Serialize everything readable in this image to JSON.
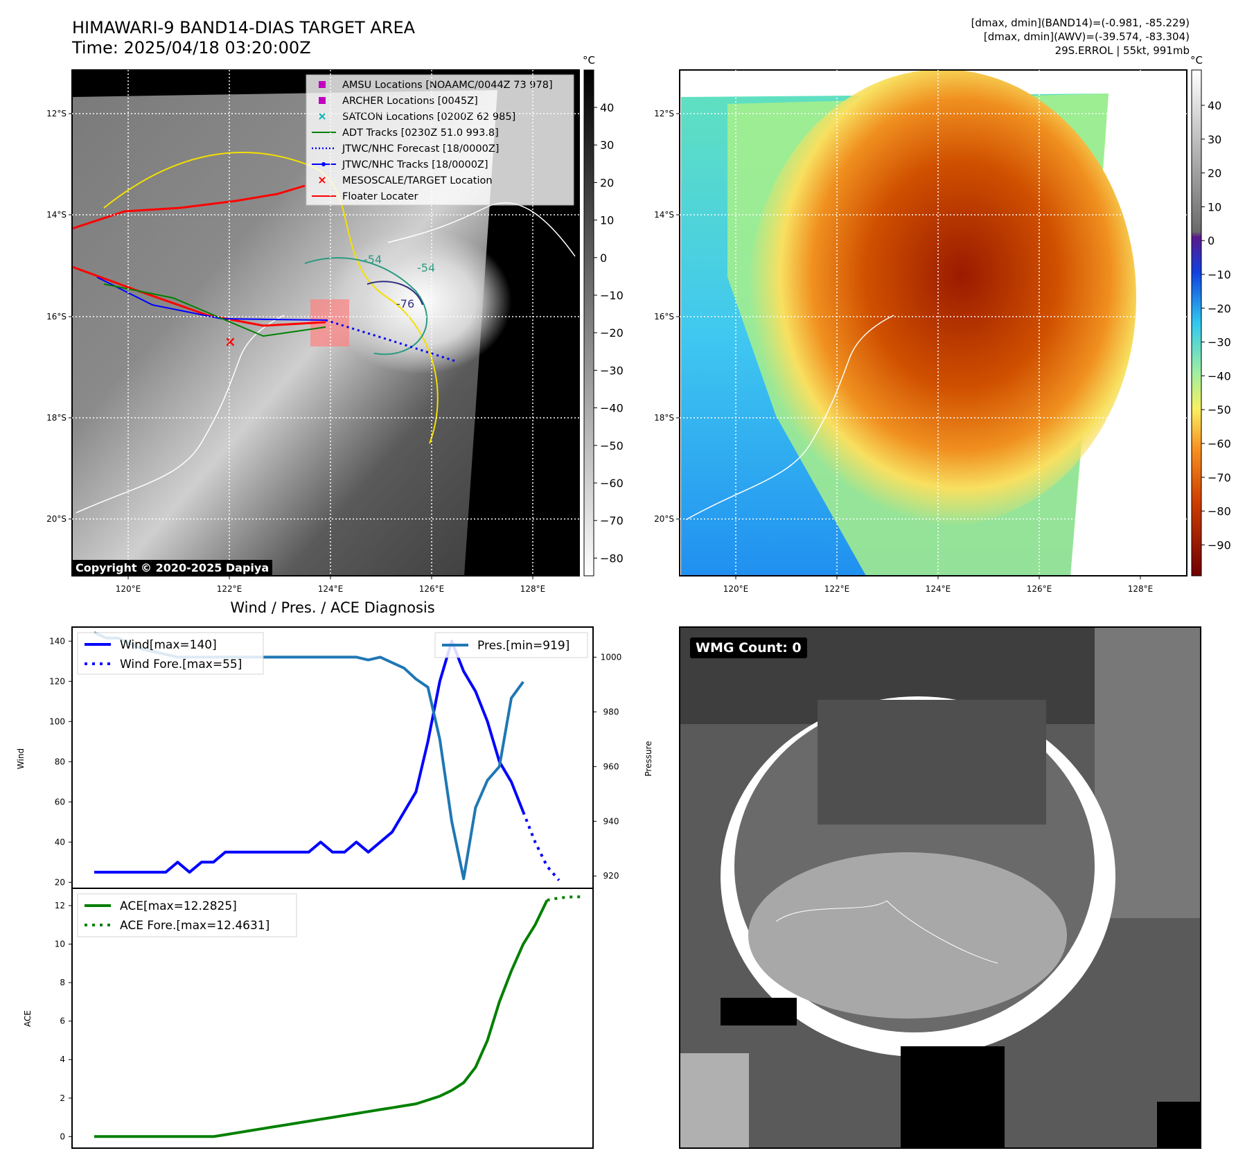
{
  "header": {
    "title_line1": "HIMAWARI-9 BAND14-DIAS TARGET AREA",
    "title_line2": "Time: 2025/04/18 03:20:00Z",
    "info_line1": "[dmax, dmin](BAND14)=(-0.981, -85.229)",
    "info_line2": "[dmax, dmin](AWV)=(-39.574, -83.304)",
    "info_line3": "29S.ERROL | 55kt, 991mb"
  },
  "map": {
    "lat_labels": [
      "12°S",
      "14°S",
      "16°S",
      "18°S",
      "20°S"
    ],
    "lon_labels": [
      "120°E",
      "122°E",
      "124°E",
      "126°E",
      "128°E"
    ],
    "contour_labels": [
      "-76",
      "-54",
      "-54"
    ],
    "copyright": "Copyright © 2020-2025 Dapiya",
    "legend": [
      {
        "label": "AMSU Locations [NOAAMC/0044Z 73 978]",
        "color": "#c000c0",
        "marker": "square"
      },
      {
        "label": "ARCHER Locations [0045Z]",
        "color": "#c000c0",
        "marker": "square"
      },
      {
        "label": "SATCON Locations [0200Z 62 985]",
        "color": "#00b0b0",
        "marker": "x"
      },
      {
        "label": "ADT Tracks [0230Z 51.0 993.8]",
        "color": "#008000",
        "marker": "line"
      },
      {
        "label": "JTWC/NHC Forecast [18/0000Z]",
        "color": "#0000ff",
        "marker": "dotted"
      },
      {
        "label": "JTWC/NHC Tracks [18/0000Z]",
        "color": "#0000ff",
        "marker": "line-dot"
      },
      {
        "label": "MESOSCALE/TARGET Location",
        "color": "#ff0000",
        "marker": "x"
      },
      {
        "label": "Floater Locater",
        "color": "#ff0000",
        "marker": "line"
      }
    ]
  },
  "colorbar_left": {
    "unit": "°C",
    "ticks": [
      "40",
      "30",
      "20",
      "10",
      "0",
      "−10",
      "−20",
      "−30",
      "−40",
      "−50",
      "−60",
      "−70",
      "−80"
    ]
  },
  "colorbar_right": {
    "unit": "°C",
    "ticks": [
      "40",
      "30",
      "20",
      "10",
      "0",
      "−10",
      "−20",
      "−30",
      "−40",
      "−50",
      "−60",
      "−70",
      "−80",
      "−90"
    ]
  },
  "chart_data": [
    {
      "type": "line",
      "title": "Wind / Pres. / ACE Diagnosis",
      "ylabel": "Wind",
      "ylabel_right": "Pressure",
      "ylim": [
        17,
        147
      ],
      "ylim_right": [
        915.5,
        1011
      ],
      "yticks": [
        "20",
        "40",
        "60",
        "80",
        "100",
        "120",
        "140"
      ],
      "yticks_right": [
        "920",
        "940",
        "960",
        "980",
        "1000"
      ],
      "series": [
        {
          "name": "Wind[max=140]",
          "color": "#0000ff",
          "style": "solid",
          "x": [
            0,
            1,
            2,
            3,
            4,
            5,
            6,
            7,
            8,
            9,
            10,
            11,
            12,
            13,
            14,
            15,
            16,
            17,
            18,
            19,
            20,
            21,
            22,
            23,
            24,
            25,
            26,
            27,
            28,
            29,
            30,
            31,
            32,
            33,
            34,
            35,
            36
          ],
          "values": [
            25,
            25,
            25,
            25,
            25,
            25,
            25,
            30,
            25,
            30,
            30,
            35,
            35,
            35,
            35,
            35,
            35,
            35,
            35,
            40,
            35,
            35,
            40,
            35,
            40,
            45,
            55,
            65,
            90,
            120,
            140,
            125,
            115,
            100,
            80,
            70,
            55
          ]
        },
        {
          "name": "Wind Fore.[max=55]",
          "color": "#0000ff",
          "style": "dotted",
          "x": [
            36,
            37,
            38,
            39
          ],
          "values": [
            55,
            40,
            28,
            21
          ]
        },
        {
          "name": "Pres.[min=919]",
          "color": "#1f77b4",
          "style": "solid",
          "axis": "right",
          "x": [
            0,
            1,
            2,
            3,
            4,
            5,
            6,
            7,
            8,
            9,
            10,
            11,
            12,
            13,
            14,
            15,
            16,
            17,
            18,
            19,
            20,
            21,
            22,
            23,
            24,
            25,
            26,
            27,
            28,
            29,
            30,
            31,
            32,
            33,
            34,
            35,
            36
          ],
          "values": [
            1009,
            1007,
            1007,
            1005,
            1003,
            1002,
            1001,
            1000,
            1000,
            1000,
            1000,
            1000,
            1000,
            1000,
            1000,
            1000,
            1000,
            1000,
            1000,
            1000,
            1000,
            1000,
            1000,
            999,
            1000,
            998,
            996,
            992,
            989,
            970,
            940,
            919,
            945,
            955,
            960,
            985,
            991
          ]
        }
      ]
    },
    {
      "type": "line",
      "ylabel": "ACE",
      "ylim": [
        -0.6,
        12.9
      ],
      "yticks": [
        "0",
        "2",
        "4",
        "6",
        "8",
        "10",
        "12"
      ],
      "series": [
        {
          "name": "ACE[max=12.2825]",
          "color": "#008000",
          "style": "solid",
          "x": [
            0,
            1,
            2,
            3,
            4,
            5,
            6,
            7,
            8,
            9,
            10,
            11,
            12,
            13,
            14,
            15,
            16,
            17,
            18,
            19,
            20,
            21,
            22,
            23,
            24,
            25,
            26,
            27,
            28,
            29,
            30,
            31,
            32,
            33,
            34,
            35,
            36,
            37,
            38
          ],
          "values": [
            0,
            0,
            0,
            0,
            0,
            0,
            0,
            0,
            0,
            0,
            0,
            0.1,
            0.2,
            0.3,
            0.4,
            0.5,
            0.6,
            0.7,
            0.8,
            0.9,
            1.0,
            1.1,
            1.2,
            1.3,
            1.4,
            1.5,
            1.6,
            1.7,
            1.9,
            2.1,
            2.4,
            2.8,
            3.6,
            5.0,
            7.0,
            8.6,
            10.0,
            11.0,
            12.28
          ]
        },
        {
          "name": "ACE Fore.[max=12.4631]",
          "color": "#008000",
          "style": "dotted",
          "x": [
            38,
            39,
            40,
            41
          ],
          "values": [
            12.28,
            12.4,
            12.45,
            12.46
          ]
        }
      ]
    }
  ],
  "wmg": {
    "label": "WMG Count: 0"
  }
}
